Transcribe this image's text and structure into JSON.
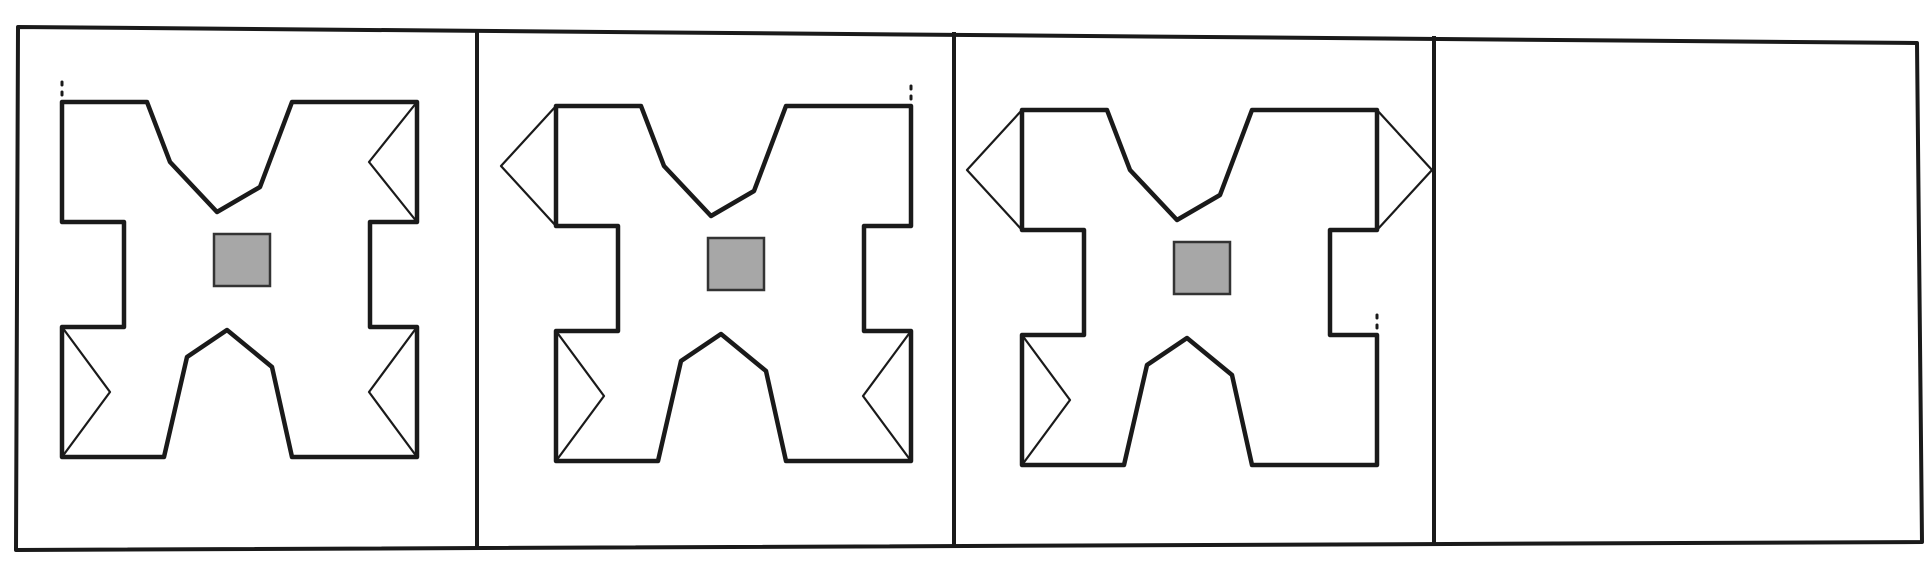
{
  "puzzle": {
    "panel_count": 4,
    "colors": {
      "line": "#1a1a1a",
      "center_square_fill": "#a7a7a7",
      "background": "#ffffff"
    },
    "panels": [
      {
        "name": "panel-1",
        "has_figure": true,
        "center_square": true,
        "side_features": {
          "top_left": "dotted",
          "top_right": "inward",
          "bottom_left": "inward",
          "bottom_right": "inward"
        }
      },
      {
        "name": "panel-2",
        "has_figure": true,
        "center_square": true,
        "side_features": {
          "top_left": "outward",
          "top_right": "dotted",
          "bottom_left": "inward",
          "bottom_right": "inward"
        }
      },
      {
        "name": "panel-3",
        "has_figure": true,
        "center_square": true,
        "side_features": {
          "top_left": "outward",
          "top_right": "outward",
          "bottom_left": "inward",
          "bottom_right": "dotted"
        }
      },
      {
        "name": "panel-4-answer-blank",
        "has_figure": false
      }
    ]
  }
}
